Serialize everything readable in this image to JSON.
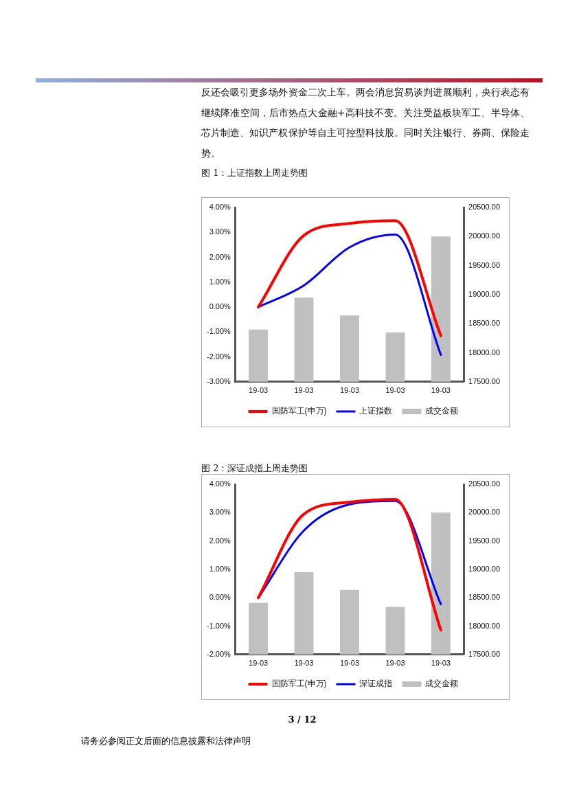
{
  "chart_data": [
    {
      "type": "other",
      "annotations": [
        "反还会吸引更多场外资金二次上车。两会消息贸易谈判进展顺利，央行表态有继续降准空间，后市热点大金融+高科技不变。关注受益板块军工、半导体、芯片制造、知识产权保护等自主可控型科技股。同时关注银行、券商、保险走势。",
        "3 / 12",
        "请务必参阅正文后面的信息披露和法律声明"
      ]
    },
    {
      "type": "line",
      "title": "图 1：上证指数上周走势图",
      "categories": [
        "19-03",
        "19-03",
        "19-03",
        "19-03",
        "19-03"
      ],
      "series": [
        {
          "name": "成交金额",
          "type": "bar",
          "axis": "y2",
          "color": "#c0c0c0",
          "values": [
            18400,
            18950,
            18640,
            18350,
            20000
          ]
        },
        {
          "name": "国防军工(申万)",
          "type": "line",
          "axis": "y",
          "color": "#ff0000",
          "values": [
            0,
            2.88,
            3.36,
            3.47,
            -1.15
          ]
        },
        {
          "name": "上证指数",
          "type": "line",
          "axis": "y",
          "color": "#0000ff",
          "values": [
            0,
            0.87,
            2.4,
            2.91,
            -1.92
          ]
        }
      ],
      "ylim": [
        -3,
        4
      ],
      "yticks": [
        {
          "value": -3,
          "label": "-3.00%"
        },
        {
          "value": -2,
          "label": "-2.00%"
        },
        {
          "value": -1,
          "label": "-1.00%"
        },
        {
          "value": 0,
          "label": "0.00%"
        },
        {
          "value": 1,
          "label": "1.00%"
        },
        {
          "value": 2,
          "label": "2.00%"
        },
        {
          "value": 3,
          "label": "3.00%"
        },
        {
          "value": 4,
          "label": "4.00%"
        }
      ],
      "y2lim": [
        17500,
        20500
      ],
      "y2ticks": [
        {
          "value": 17500,
          "label": "17500.00"
        },
        {
          "value": 18000,
          "label": "18000.00"
        },
        {
          "value": 18500,
          "label": "18500.00"
        },
        {
          "value": 19000,
          "label": "19000.00"
        },
        {
          "value": 19500,
          "label": "19500.00"
        },
        {
          "value": 20000,
          "label": "20000.00"
        },
        {
          "value": 20500,
          "label": "20500.00"
        }
      ],
      "legend": "bottom",
      "grid": false,
      "marker": "none"
    },
    {
      "type": "line",
      "title": "图 2：深证成指上周走势图",
      "categories": [
        "19-03",
        "19-03",
        "19-03",
        "19-03",
        "19-03"
      ],
      "series": [
        {
          "name": "成交金额",
          "type": "bar",
          "axis": "y2",
          "color": "#c0c0c0",
          "values": [
            18410,
            18950,
            18640,
            18340,
            20000
          ]
        },
        {
          "name": "国防军工(申万)",
          "type": "line",
          "axis": "y",
          "color": "#ff0000",
          "values": [
            0,
            2.95,
            3.37,
            3.47,
            -1.14
          ]
        },
        {
          "name": "深证成指",
          "type": "line",
          "axis": "y",
          "color": "#0000ff",
          "values": [
            0,
            2.37,
            3.29,
            3.41,
            -0.23
          ]
        }
      ],
      "ylim": [
        -2,
        4
      ],
      "yticks": [
        {
          "value": -2,
          "label": "-2.00%"
        },
        {
          "value": -1,
          "label": "-1.00%"
        },
        {
          "value": 0,
          "label": "0.00%"
        },
        {
          "value": 1,
          "label": "1.00%"
        },
        {
          "value": 2,
          "label": "2.00%"
        },
        {
          "value": 3,
          "label": "3.00%"
        },
        {
          "value": 4,
          "label": "4.00%"
        }
      ],
      "y2lim": [
        17500,
        20500
      ],
      "y2ticks": [
        {
          "value": 17500,
          "label": "17500.00"
        },
        {
          "value": 18000,
          "label": "18000.00"
        },
        {
          "value": 18500,
          "label": "18500.00"
        },
        {
          "value": 19000,
          "label": "19000.00"
        },
        {
          "value": 19500,
          "label": "19500.00"
        },
        {
          "value": 20000,
          "label": "20000.00"
        },
        {
          "value": 20500,
          "label": "20500.00"
        }
      ],
      "legend": "bottom",
      "grid": false,
      "marker": "none"
    }
  ]
}
